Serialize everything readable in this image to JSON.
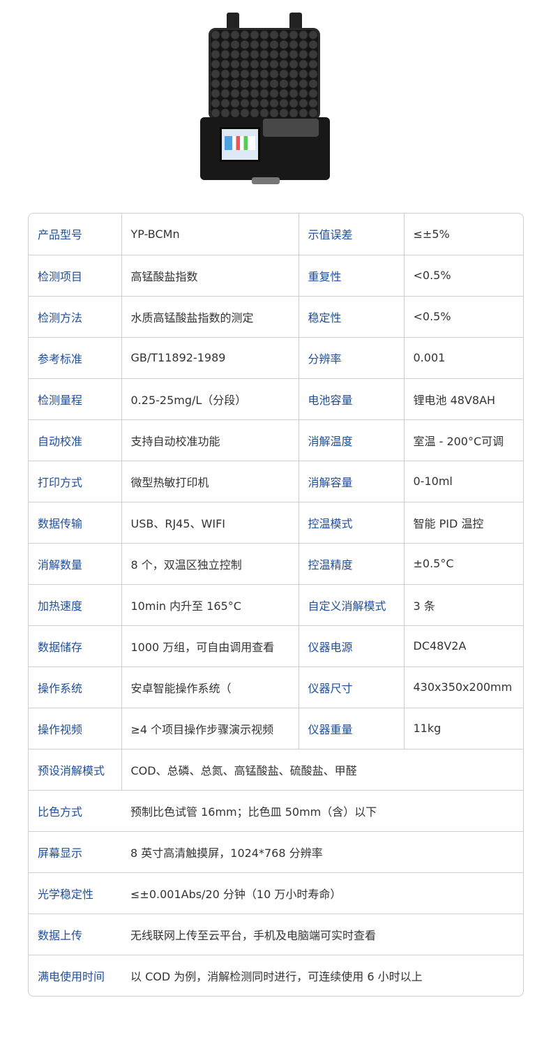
{
  "specs_two_col": [
    {
      "label1": "产品型号",
      "value1": "YP-BCMn",
      "label2": "示值误差",
      "value2": "≤±5%"
    },
    {
      "label1": "检测项目",
      "value1": "高锰酸盐指数",
      "label2": "重复性",
      "value2": "<0.5%"
    },
    {
      "label1": "检测方法",
      "value1": "水质高锰酸盐指数的测定",
      "label2": "稳定性",
      "value2": "<0.5%"
    },
    {
      "label1": "参考标准",
      "value1": "GB/T11892-1989",
      "label2": "分辨率",
      "value2": "0.001"
    },
    {
      "label1": "检测量程",
      "value1": "0.25-25mg/L（分段）",
      "label2": "电池容量",
      "value2": "锂电池 48V8AH"
    },
    {
      "label1": "自动校准",
      "value1": "支持自动校准功能",
      "label2": "消解温度",
      "value2": "室温 - 200°C可调"
    },
    {
      "label1": "打印方式",
      "value1": "微型热敏打印机",
      "label2": "消解容量",
      "value2": "0-10ml"
    },
    {
      "label1": "数据传输",
      "value1": "USB、RJ45、WIFI",
      "label2": "控温模式",
      "value2": "智能 PID 温控"
    },
    {
      "label1": "消解数量",
      "value1": "8 个，双温区独立控制",
      "label2": "控温精度",
      "value2": "±0.5°C"
    },
    {
      "label1": "加热速度",
      "value1": "10min 内升至 165°C",
      "label2": "自定义消解模式",
      "value2": "3 条"
    },
    {
      "label1": "数据储存",
      "value1": "1000 万组，可自由调用查看",
      "label2": "仪器电源",
      "value2": "DC48V2A"
    },
    {
      "label1": "操作系统",
      "value1": "安卓智能操作系统（",
      "label2": "仪器尺寸",
      "value2": "430x350x200mm"
    },
    {
      "label1": "操作视频",
      "value1": "≥4 个项目操作步骤演示视频",
      "label2": "仪器重量",
      "value2": "11kg"
    }
  ],
  "specs_wide": [
    {
      "label": "预设消解模式",
      "value": "COD、总磷、总氮、高锰酸盐、硫酸盐、甲醛"
    },
    {
      "label": "比色方式",
      "value": "预制比色试管 16mm；比色皿 50mm（含）以下"
    },
    {
      "label": "屏幕显示",
      "value": "8 英寸高清触摸屏，1024*768 分辨率"
    },
    {
      "label": "光学稳定性",
      "value": "≤±0.001Abs/20 分钟（10 万小时寿命）"
    },
    {
      "label": "数据上传",
      "value": "无线联网上传至云平台，手机及电脑端可实时查看"
    },
    {
      "label": "满电使用时间",
      "value": "以 COD 为例，消解检测同时进行，可连续使用 6 小时以上"
    }
  ],
  "colors": {
    "label": "#1f4e9a",
    "value": "#333333",
    "border": "#cfcfcf"
  }
}
